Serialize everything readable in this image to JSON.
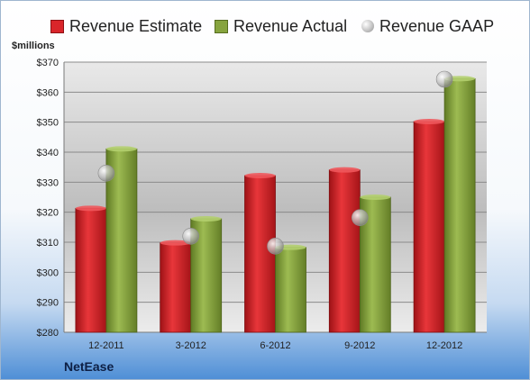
{
  "chart_data": {
    "type": "bar",
    "unit_label": "$millions",
    "categories": [
      "12-2011",
      "3-2012",
      "6-2012",
      "9-2012",
      "12-2012"
    ],
    "series": [
      {
        "name": "Revenue Estimate",
        "kind": "bar",
        "color": "#d9252a",
        "values": [
          321.3,
          309.8,
          332.2,
          334.1,
          350.2
        ]
      },
      {
        "name": "Revenue Actual",
        "kind": "bar",
        "color": "#87a43e",
        "values": [
          341.1,
          317.8,
          308.3,
          325.0,
          364.5
        ]
      },
      {
        "name": "Revenue GAAP",
        "kind": "marker",
        "color": "#c4c4c4",
        "values": [
          333.0,
          312.0,
          308.7,
          318.2,
          364.3
        ]
      }
    ],
    "ylim": [
      280,
      370
    ],
    "yticks": [
      "$280",
      "$290",
      "$300",
      "$310",
      "$320",
      "$330",
      "$340",
      "$350",
      "$360",
      "$370"
    ],
    "grid": true,
    "legend": "top"
  },
  "company": "NetEase"
}
